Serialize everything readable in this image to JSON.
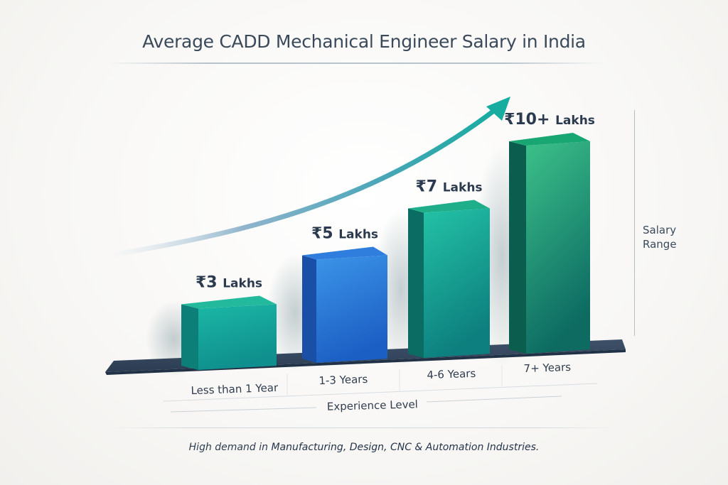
{
  "chart_data": {
    "type": "bar",
    "title": "Average CADD Mechanical Engineer Salary in India",
    "xlabel": "Experience Level",
    "ylabel": "Salary Range",
    "categories": [
      "Less than 1 Year",
      "1-3 Years",
      "4-6 Years",
      "7+ Years"
    ],
    "values": [
      3,
      5,
      7,
      10
    ],
    "units": "Lakhs (INR)",
    "data_labels": [
      {
        "currency": "₹",
        "amount": "3",
        "unit": "Lakhs"
      },
      {
        "currency": "₹",
        "amount": "5",
        "unit": "Lakhs"
      },
      {
        "currency": "₹",
        "amount": "7",
        "unit": "Lakhs"
      },
      {
        "currency": "₹",
        "amount": "10+",
        "unit": "Lakhs"
      }
    ],
    "ylim": [
      0,
      10
    ],
    "grid": false,
    "legend": "none",
    "annotations": [
      "upward trend arrow"
    ],
    "bar_colors": [
      "#13a89a",
      "#2a73d6",
      "#14a393",
      "#12916c"
    ]
  },
  "footnote": {
    "prefix": "High demand in ",
    "emphasis": "Manufacturing, Design, CNC & Automation Industries."
  },
  "colors": {
    "title": "#3b4a5a",
    "platform": "#34475e",
    "arrow": "#1aa8a0",
    "text": "#2b3a4f"
  }
}
